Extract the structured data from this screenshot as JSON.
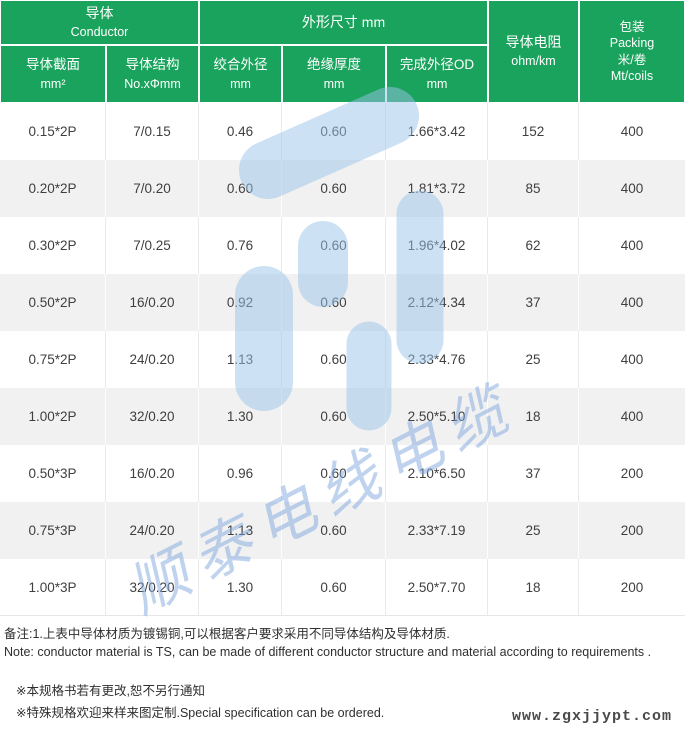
{
  "colors": {
    "header_green": "#1aa35c",
    "row_alt_gray": "#f1f1f1",
    "body_text": "#3f3f3f",
    "watermark_blue": "#9cc4ea"
  },
  "table": {
    "group_headers": {
      "conductor_zh": "导体",
      "conductor_en": "Conductor",
      "dimensions": "外形尺寸 mm",
      "resistance_zh": "导体电阻",
      "resistance_en": "ohm/km",
      "packing_zh": "包装",
      "packing_en": "Packing",
      "packing_unit_zh": "米/卷",
      "packing_unit_en": "Mt/coils"
    },
    "sub_headers": [
      {
        "zh": "导体截面",
        "unit": "mm²"
      },
      {
        "zh": "导体结构",
        "unit": "No.xΦmm"
      },
      {
        "zh": "绞合外径",
        "unit": "mm"
      },
      {
        "zh": "绝缘厚度",
        "unit": "mm"
      },
      {
        "zh": "完成外径OD",
        "unit": "mm"
      }
    ],
    "rows": [
      [
        "0.15*2P",
        "7/0.15",
        "0.46",
        "0.60",
        "1.66*3.42",
        "152",
        "400"
      ],
      [
        "0.20*2P",
        "7/0.20",
        "0.60",
        "0.60",
        "1.81*3.72",
        "85",
        "400"
      ],
      [
        "0.30*2P",
        "7/0.25",
        "0.76",
        "0.60",
        "1.96*4.02",
        "62",
        "400"
      ],
      [
        "0.50*2P",
        "16/0.20",
        "0.92",
        "0.60",
        "2.12*4.34",
        "37",
        "400"
      ],
      [
        "0.75*2P",
        "24/0.20",
        "1.13",
        "0.60",
        "2.33*4.76",
        "25",
        "400"
      ],
      [
        "1.00*2P",
        "32/0.20",
        "1.30",
        "0.60",
        "2.50*5.10",
        "18",
        "400"
      ],
      [
        "0.50*3P",
        "16/0.20",
        "0.96",
        "0.60",
        "2.10*6.50",
        "37",
        "200"
      ],
      [
        "0.75*3P",
        "24/0.20",
        "1.13",
        "0.60",
        "2.33*7.19",
        "25",
        "200"
      ],
      [
        "1.00*3P",
        "32/0.20",
        "1.30",
        "0.60",
        "2.50*7.70",
        "18",
        "200"
      ]
    ]
  },
  "notes": {
    "remark_zh": "备注:1.上表中导体材质为镀锡铜,可以根据客户要求采用不同导体结构及导体材质.",
    "note_en": "Note: conductor material is TS, can be made of different conductor structure and material according to requirements .",
    "tip1": "※本规格书若有更改,恕不另行通知",
    "tip2": "※特殊规格欢迎来样来图定制.Special specification can be ordered."
  },
  "watermark": {
    "text": "顺泰电线电缆"
  },
  "footer": {
    "website": "www.zgxjjypt.com"
  }
}
